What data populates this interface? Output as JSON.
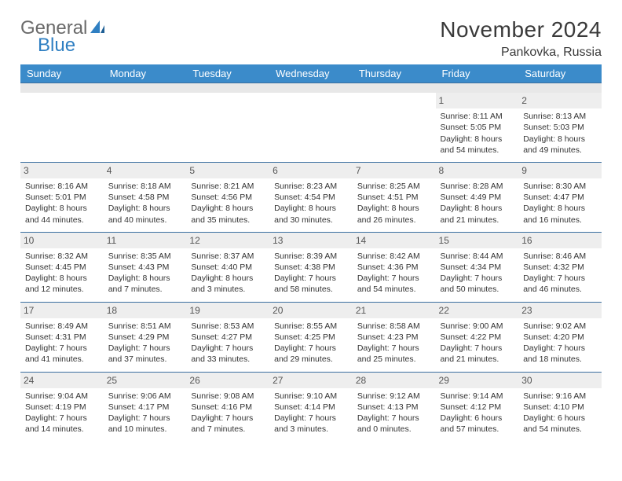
{
  "logo": {
    "word1": "General",
    "word2": "Blue",
    "color_gray": "#6a6a6a",
    "color_blue": "#2f7fc2"
  },
  "title": "November 2024",
  "location": "Pankovka, Russia",
  "colors": {
    "header_bg": "#3b8bca",
    "header_text": "#ffffff",
    "row_divider": "#3b6fa0",
    "daynum_bg": "#eeeeee",
    "blank_row_bg": "#e8e8e8",
    "text": "#333333",
    "page_bg": "#ffffff"
  },
  "typography": {
    "title_fontsize": 28,
    "location_fontsize": 16,
    "dayheader_fontsize": 13,
    "cell_fontsize": 10.5,
    "daynum_fontsize": 12
  },
  "dayHeaders": [
    "Sunday",
    "Monday",
    "Tuesday",
    "Wednesday",
    "Thursday",
    "Friday",
    "Saturday"
  ],
  "weeks": [
    [
      null,
      null,
      null,
      null,
      null,
      {
        "n": "1",
        "sunrise": "8:11 AM",
        "sunset": "5:05 PM",
        "daylight": "8 hours and 54 minutes."
      },
      {
        "n": "2",
        "sunrise": "8:13 AM",
        "sunset": "5:03 PM",
        "daylight": "8 hours and 49 minutes."
      }
    ],
    [
      {
        "n": "3",
        "sunrise": "8:16 AM",
        "sunset": "5:01 PM",
        "daylight": "8 hours and 44 minutes."
      },
      {
        "n": "4",
        "sunrise": "8:18 AM",
        "sunset": "4:58 PM",
        "daylight": "8 hours and 40 minutes."
      },
      {
        "n": "5",
        "sunrise": "8:21 AM",
        "sunset": "4:56 PM",
        "daylight": "8 hours and 35 minutes."
      },
      {
        "n": "6",
        "sunrise": "8:23 AM",
        "sunset": "4:54 PM",
        "daylight": "8 hours and 30 minutes."
      },
      {
        "n": "7",
        "sunrise": "8:25 AM",
        "sunset": "4:51 PM",
        "daylight": "8 hours and 26 minutes."
      },
      {
        "n": "8",
        "sunrise": "8:28 AM",
        "sunset": "4:49 PM",
        "daylight": "8 hours and 21 minutes."
      },
      {
        "n": "9",
        "sunrise": "8:30 AM",
        "sunset": "4:47 PM",
        "daylight": "8 hours and 16 minutes."
      }
    ],
    [
      {
        "n": "10",
        "sunrise": "8:32 AM",
        "sunset": "4:45 PM",
        "daylight": "8 hours and 12 minutes."
      },
      {
        "n": "11",
        "sunrise": "8:35 AM",
        "sunset": "4:43 PM",
        "daylight": "8 hours and 7 minutes."
      },
      {
        "n": "12",
        "sunrise": "8:37 AM",
        "sunset": "4:40 PM",
        "daylight": "8 hours and 3 minutes."
      },
      {
        "n": "13",
        "sunrise": "8:39 AM",
        "sunset": "4:38 PM",
        "daylight": "7 hours and 58 minutes."
      },
      {
        "n": "14",
        "sunrise": "8:42 AM",
        "sunset": "4:36 PM",
        "daylight": "7 hours and 54 minutes."
      },
      {
        "n": "15",
        "sunrise": "8:44 AM",
        "sunset": "4:34 PM",
        "daylight": "7 hours and 50 minutes."
      },
      {
        "n": "16",
        "sunrise": "8:46 AM",
        "sunset": "4:32 PM",
        "daylight": "7 hours and 46 minutes."
      }
    ],
    [
      {
        "n": "17",
        "sunrise": "8:49 AM",
        "sunset": "4:31 PM",
        "daylight": "7 hours and 41 minutes."
      },
      {
        "n": "18",
        "sunrise": "8:51 AM",
        "sunset": "4:29 PM",
        "daylight": "7 hours and 37 minutes."
      },
      {
        "n": "19",
        "sunrise": "8:53 AM",
        "sunset": "4:27 PM",
        "daylight": "7 hours and 33 minutes."
      },
      {
        "n": "20",
        "sunrise": "8:55 AM",
        "sunset": "4:25 PM",
        "daylight": "7 hours and 29 minutes."
      },
      {
        "n": "21",
        "sunrise": "8:58 AM",
        "sunset": "4:23 PM",
        "daylight": "7 hours and 25 minutes."
      },
      {
        "n": "22",
        "sunrise": "9:00 AM",
        "sunset": "4:22 PM",
        "daylight": "7 hours and 21 minutes."
      },
      {
        "n": "23",
        "sunrise": "9:02 AM",
        "sunset": "4:20 PM",
        "daylight": "7 hours and 18 minutes."
      }
    ],
    [
      {
        "n": "24",
        "sunrise": "9:04 AM",
        "sunset": "4:19 PM",
        "daylight": "7 hours and 14 minutes."
      },
      {
        "n": "25",
        "sunrise": "9:06 AM",
        "sunset": "4:17 PM",
        "daylight": "7 hours and 10 minutes."
      },
      {
        "n": "26",
        "sunrise": "9:08 AM",
        "sunset": "4:16 PM",
        "daylight": "7 hours and 7 minutes."
      },
      {
        "n": "27",
        "sunrise": "9:10 AM",
        "sunset": "4:14 PM",
        "daylight": "7 hours and 3 minutes."
      },
      {
        "n": "28",
        "sunrise": "9:12 AM",
        "sunset": "4:13 PM",
        "daylight": "7 hours and 0 minutes."
      },
      {
        "n": "29",
        "sunrise": "9:14 AM",
        "sunset": "4:12 PM",
        "daylight": "6 hours and 57 minutes."
      },
      {
        "n": "30",
        "sunrise": "9:16 AM",
        "sunset": "4:10 PM",
        "daylight": "6 hours and 54 minutes."
      }
    ]
  ],
  "labels": {
    "sunrise": "Sunrise:",
    "sunset": "Sunset:",
    "daylight": "Daylight:"
  }
}
